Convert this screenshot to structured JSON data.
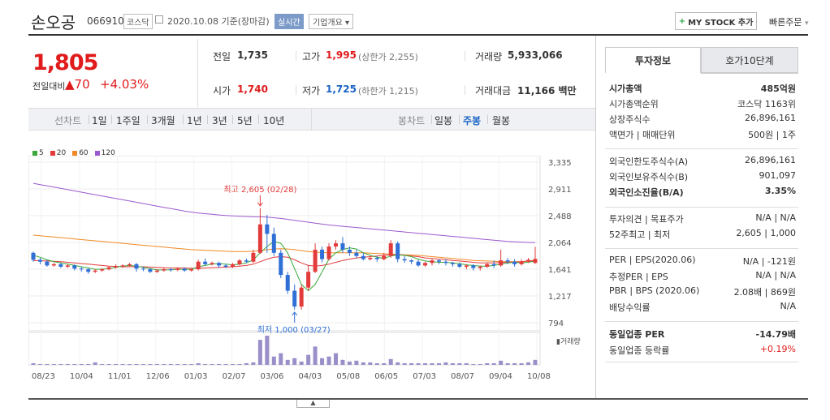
{
  "header": {
    "stock_name": "손오공",
    "stock_code": "066910",
    "market": "코스닥",
    "date_basis": "2020.10.08 기준(장마감)",
    "realtime": "실시간",
    "company_info": "기업개요",
    "my_stock": "MY STOCK 추가",
    "quick_order": "빠른주문"
  },
  "price": {
    "current": "1,805",
    "change_label": "전일대비",
    "change": "70",
    "change_pct": "+4.03%"
  },
  "stats": {
    "prev_close_label": "전일",
    "prev_close": "1,735",
    "high_label": "고가",
    "high": "1,995",
    "upper_limit": "(상한가 2,255)",
    "volume_label": "거래량",
    "volume": "5,933,066",
    "open_label": "시가",
    "open": "1,740",
    "low_label": "저가",
    "low": "1,725",
    "lower_limit": "(하한가 1,215)",
    "value_label": "거래대금",
    "value": "11,166 백만"
  },
  "range_bar": {
    "line_label": "선차트",
    "ranges": [
      "1일",
      "1주일",
      "3개월",
      "1년",
      "3년",
      "5년",
      "10년"
    ],
    "candle_label": "봉차트",
    "candles": [
      "일봉",
      "주봉",
      "월봉"
    ],
    "active_candle": "주봉"
  },
  "chart_data": {
    "type": "candlestick",
    "legend": [
      "5",
      "20",
      "60",
      "120"
    ],
    "ma_colors": {
      "5": "#3aa83a",
      "20": "#e33b3b",
      "60": "#f08a24",
      "120": "#9b59d0"
    },
    "y_ticks": [
      "3,335",
      "2,911",
      "2,488",
      "2,064",
      "1,641",
      "1,217",
      "794"
    ],
    "y_range": [
      794,
      3335
    ],
    "x_labels": [
      "08/23",
      "10/04",
      "11/01",
      "12/06",
      "01/03",
      "02/07",
      "03/06",
      "04/03",
      "05/08",
      "06/05",
      "07/03",
      "08/07",
      "09/04",
      "10/08"
    ],
    "high_annotation": "최고 2,605 (02/28)",
    "low_annotation": "최저 1,000 (03/27)",
    "volume_label": "거래량",
    "candles": [
      [
        1900,
        1790,
        1920,
        1760
      ],
      [
        1790,
        1760,
        1820,
        1720
      ],
      [
        1760,
        1700,
        1790,
        1680
      ],
      [
        1700,
        1720,
        1740,
        1680
      ],
      [
        1720,
        1680,
        1740,
        1660
      ],
      [
        1680,
        1700,
        1720,
        1660
      ],
      [
        1700,
        1650,
        1720,
        1620
      ],
      [
        1650,
        1640,
        1680,
        1600
      ],
      [
        1640,
        1600,
        1660,
        1570
      ],
      [
        1600,
        1620,
        1640,
        1580
      ],
      [
        1620,
        1640,
        1660,
        1600
      ],
      [
        1640,
        1670,
        1690,
        1620
      ],
      [
        1670,
        1690,
        1720,
        1650
      ],
      [
        1690,
        1700,
        1720,
        1660
      ],
      [
        1700,
        1720,
        1740,
        1680
      ],
      [
        1720,
        1650,
        1740,
        1600
      ],
      [
        1650,
        1640,
        1680,
        1610
      ],
      [
        1640,
        1600,
        1660,
        1580
      ],
      [
        1600,
        1620,
        1640,
        1580
      ],
      [
        1620,
        1640,
        1660,
        1600
      ],
      [
        1640,
        1630,
        1660,
        1600
      ],
      [
        1630,
        1650,
        1670,
        1610
      ],
      [
        1650,
        1620,
        1670,
        1600
      ],
      [
        1620,
        1640,
        1650,
        1600
      ],
      [
        1640,
        1760,
        1790,
        1620
      ],
      [
        1760,
        1720,
        1810,
        1700
      ],
      [
        1720,
        1740,
        1760,
        1700
      ],
      [
        1740,
        1700,
        1760,
        1660
      ],
      [
        1700,
        1680,
        1720,
        1660
      ],
      [
        1680,
        1720,
        1740,
        1660
      ],
      [
        1720,
        1780,
        1800,
        1700
      ],
      [
        1780,
        1760,
        1810,
        1740
      ],
      [
        1760,
        1900,
        1950,
        1740
      ],
      [
        1900,
        2350,
        2605,
        1880
      ],
      [
        2350,
        2200,
        2500,
        1900
      ],
      [
        2200,
        1900,
        2300,
        1850
      ],
      [
        1900,
        1550,
        1950,
        1500
      ],
      [
        1550,
        1300,
        1600,
        1250
      ],
      [
        1300,
        1050,
        1400,
        1000
      ],
      [
        1050,
        1350,
        1400,
        1000
      ],
      [
        1350,
        1600,
        1700,
        1300
      ],
      [
        1600,
        1950,
        2050,
        1580
      ],
      [
        1950,
        1800,
        2000,
        1750
      ],
      [
        1800,
        2000,
        2050,
        1780
      ],
      [
        2000,
        2050,
        2100,
        1950
      ],
      [
        2050,
        1950,
        2150,
        1900
      ],
      [
        1950,
        1900,
        2000,
        1850
      ],
      [
        1900,
        1850,
        1950,
        1820
      ],
      [
        1850,
        1800,
        1900,
        1780
      ],
      [
        1800,
        1820,
        1850,
        1780
      ],
      [
        1820,
        1800,
        1850,
        1760
      ],
      [
        1800,
        1850,
        1900,
        1780
      ],
      [
        1850,
        2050,
        2100,
        1820
      ],
      [
        2050,
        1800,
        2080,
        1750
      ],
      [
        1800,
        1780,
        1850,
        1740
      ],
      [
        1780,
        1760,
        1800,
        1720
      ],
      [
        1760,
        1700,
        1790,
        1680
      ],
      [
        1700,
        1740,
        1760,
        1680
      ],
      [
        1740,
        1780,
        1800,
        1700
      ],
      [
        1780,
        1760,
        1800,
        1720
      ],
      [
        1760,
        1740,
        1800,
        1700
      ],
      [
        1740,
        1720,
        1760,
        1680
      ],
      [
        1720,
        1680,
        1750,
        1660
      ],
      [
        1680,
        1700,
        1720,
        1640
      ],
      [
        1700,
        1660,
        1720,
        1620
      ],
      [
        1660,
        1680,
        1700,
        1620
      ],
      [
        1680,
        1720,
        1750,
        1660
      ],
      [
        1720,
        1700,
        1780,
        1660
      ],
      [
        1700,
        1780,
        1950,
        1680
      ],
      [
        1780,
        1760,
        1820,
        1720
      ],
      [
        1760,
        1720,
        1800,
        1680
      ],
      [
        1720,
        1760,
        1800,
        1700
      ],
      [
        1760,
        1790,
        1820,
        1740
      ],
      [
        1740,
        1805,
        1995,
        1725
      ]
    ],
    "ma5": [
      1860,
      1830,
      1790,
      1760,
      1740,
      1720,
      1700,
      1680,
      1660,
      1640,
      1640,
      1650,
      1670,
      1690,
      1700,
      1690,
      1670,
      1650,
      1630,
      1630,
      1630,
      1640,
      1640,
      1640,
      1680,
      1700,
      1720,
      1730,
      1720,
      1710,
      1720,
      1740,
      1790,
      1900,
      2000,
      2080,
      2050,
      1900,
      1650,
      1400,
      1300,
      1400,
      1600,
      1800,
      1900,
      1950,
      1980,
      1960,
      1900,
      1860,
      1830,
      1810,
      1850,
      1870,
      1860,
      1840,
      1800,
      1770,
      1760,
      1750,
      1750,
      1740,
      1730,
      1710,
      1700,
      1690,
      1690,
      1700,
      1720,
      1740,
      1750,
      1740,
      1750,
      1770
    ],
    "ma20": [
      1780,
      1775,
      1770,
      1765,
      1760,
      1750,
      1740,
      1730,
      1720,
      1710,
      1700,
      1690,
      1685,
      1680,
      1680,
      1680,
      1680,
      1675,
      1670,
      1665,
      1660,
      1660,
      1660,
      1655,
      1655,
      1660,
      1665,
      1670,
      1675,
      1680,
      1690,
      1700,
      1720,
      1760,
      1800,
      1830,
      1840,
      1830,
      1790,
      1740,
      1700,
      1690,
      1700,
      1720,
      1750,
      1780,
      1800,
      1820,
      1830,
      1840,
      1850,
      1860,
      1870,
      1870,
      1860,
      1850,
      1840,
      1820,
      1810,
      1800,
      1790,
      1780,
      1770,
      1760,
      1750,
      1740,
      1740,
      1740,
      1745,
      1750,
      1755,
      1760,
      1770,
      1780
    ],
    "ma60": [
      2180,
      2170,
      2160,
      2150,
      2140,
      2130,
      2120,
      2110,
      2100,
      2090,
      2080,
      2070,
      2060,
      2050,
      2040,
      2030,
      2020,
      2010,
      2000,
      1990,
      1980,
      1970,
      1960,
      1950,
      1945,
      1940,
      1935,
      1930,
      1925,
      1920,
      1920,
      1920,
      1925,
      1935,
      1950,
      1960,
      1965,
      1960,
      1950,
      1935,
      1920,
      1910,
      1905,
      1900,
      1900,
      1900,
      1900,
      1900,
      1900,
      1895,
      1890,
      1885,
      1880,
      1875,
      1870,
      1865,
      1860,
      1850,
      1840,
      1830,
      1820,
      1810,
      1800,
      1790,
      1780,
      1775,
      1770,
      1765,
      1760,
      1760,
      1760,
      1760,
      1765,
      1770
    ],
    "ma120": [
      3000,
      2980,
      2960,
      2940,
      2920,
      2900,
      2880,
      2860,
      2840,
      2820,
      2800,
      2780,
      2760,
      2740,
      2720,
      2700,
      2680,
      2660,
      2640,
      2620,
      2600,
      2580,
      2560,
      2545,
      2530,
      2520,
      2510,
      2500,
      2490,
      2485,
      2480,
      2475,
      2470,
      2470,
      2465,
      2455,
      2445,
      2430,
      2415,
      2400,
      2385,
      2370,
      2355,
      2340,
      2330,
      2320,
      2310,
      2300,
      2290,
      2280,
      2270,
      2260,
      2250,
      2240,
      2230,
      2220,
      2210,
      2200,
      2190,
      2180,
      2170,
      2160,
      2150,
      2140,
      2130,
      2120,
      2110,
      2100,
      2090,
      2080,
      2075,
      2070,
      2065,
      2060
    ],
    "volumes": [
      2,
      1,
      1,
      1,
      1,
      1,
      1,
      1,
      1,
      3,
      1,
      1,
      1,
      1,
      1,
      1,
      1,
      1,
      1,
      1,
      1,
      1,
      1,
      1,
      2,
      1,
      1,
      1,
      1,
      1,
      1,
      2,
      3,
      30,
      35,
      10,
      14,
      6,
      8,
      4,
      12,
      22,
      8,
      10,
      14,
      6,
      4,
      5,
      3,
      3,
      2,
      2,
      7,
      3,
      2,
      2,
      2,
      2,
      2,
      2,
      3,
      2,
      2,
      2,
      1,
      1,
      2,
      2,
      5,
      2,
      2,
      2,
      3,
      6
    ]
  },
  "invest_panel": {
    "tab_invest": "투자정보",
    "tab_orderbook": "호가10단계",
    "rows1": [
      {
        "k": "시가총액",
        "v": "485억원",
        "bold": true
      },
      {
        "k": "시가총액순위",
        "v": "코스닥 1163위"
      },
      {
        "k": "상장주식수",
        "v": "26,896,161"
      },
      {
        "k": "액면가 | 매매단위",
        "v": "500원 | 1주"
      }
    ],
    "rows2": [
      {
        "k": "외국인한도주식수(A)",
        "v": "26,896,161"
      },
      {
        "k": "외국인보유주식수(B)",
        "v": "901,097"
      },
      {
        "k": "외국인소진율(B/A)",
        "v": "3.35%",
        "bold": true
      }
    ],
    "rows3": [
      {
        "k": "투자의견 | 목표주가",
        "v": "N/A | N/A"
      },
      {
        "k": "52주최고 | 최저",
        "v": "2,605 | 1,000"
      }
    ],
    "rows4": [
      {
        "k": "PER | EPS(2020.06)",
        "v": "N/A | -121원"
      },
      {
        "k": "추정PER | EPS",
        "v": "N/A | N/A"
      },
      {
        "k": "PBR | BPS (2020.06)",
        "v": "2.08배 | 869원"
      },
      {
        "k": "배당수익률",
        "v": "N/A"
      }
    ],
    "rows5": [
      {
        "k": "동일업종 PER",
        "v": "-14.79배",
        "bold": true
      },
      {
        "k": "동일업종 등락률",
        "v": "+0.19%",
        "red": true
      }
    ]
  }
}
